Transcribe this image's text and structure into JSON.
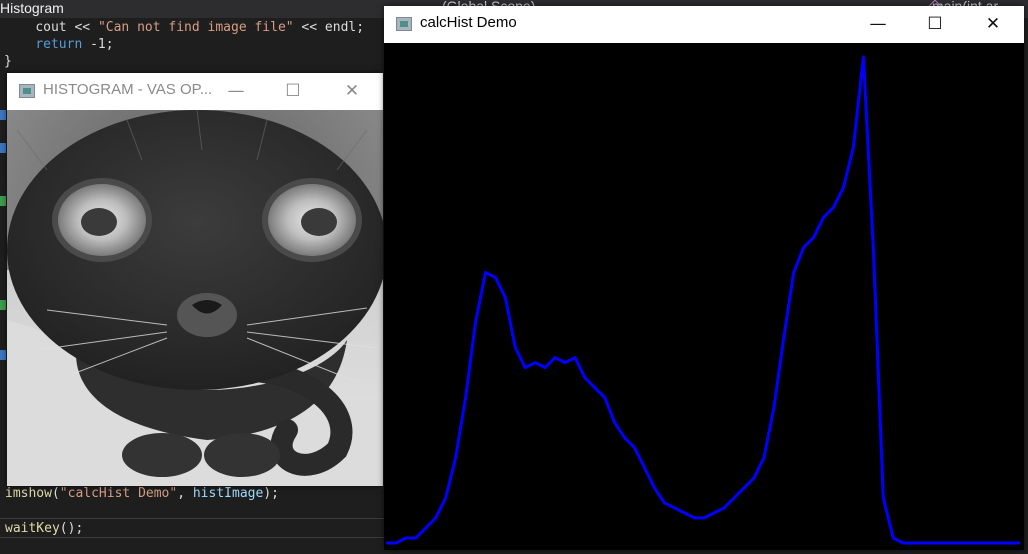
{
  "ide": {
    "title": "Histogram",
    "scope": "(Global Scope)",
    "function": "main(int ar",
    "code_top": [
      {
        "indent": "    ",
        "parts": [
          [
            "id",
            "cout << "
          ],
          [
            "str",
            "\"Can not find image file\""
          ],
          [
            "id",
            " << endl;"
          ]
        ]
      },
      {
        "indent": "    ",
        "parts": [
          [
            "kw",
            "return"
          ],
          [
            "id",
            " -1;"
          ]
        ]
      },
      {
        "indent": "",
        "parts": [
          [
            "id",
            "}"
          ]
        ]
      }
    ],
    "line_imshow": [
      [
        "fn",
        "imshow"
      ],
      [
        "id",
        "("
      ],
      [
        "str",
        "\"calcHist Demo\""
      ],
      [
        "id",
        ", "
      ],
      [
        "hl",
        "histImage"
      ],
      [
        "id",
        ");"
      ]
    ],
    "line_waitkey": [
      [
        "fn",
        "waitKey"
      ],
      [
        "id",
        "();"
      ]
    ]
  },
  "windows": {
    "histogram": {
      "title": "HISTOGRAM - VAS OP...",
      "minimize": "—",
      "maximize": "☐",
      "close": "✕"
    },
    "calchist": {
      "title": "calcHist Demo",
      "minimize": "—",
      "maximize": "☐",
      "close": "✕"
    }
  },
  "colors": {
    "histogram_line": "#0000ff",
    "plot_bg": "#000000",
    "ide_bg": "#1e1e1e"
  },
  "chart_data": {
    "type": "line",
    "title": "",
    "xlabel": "",
    "ylabel": "",
    "xlim": [
      0,
      255
    ],
    "ylim": [
      0,
      1
    ],
    "series": [
      {
        "x": [
          0,
          4,
          8,
          12,
          16,
          20,
          24,
          28,
          32,
          36,
          40,
          44,
          48,
          52,
          56,
          60,
          64,
          68,
          72,
          76,
          80,
          84,
          88,
          92,
          96,
          100,
          104,
          108,
          112,
          116,
          120,
          124,
          128,
          132,
          136,
          140,
          144,
          148,
          152,
          156,
          160,
          164,
          168,
          172,
          176,
          180,
          184,
          188,
          192,
          196,
          200,
          204,
          208,
          212,
          216,
          220,
          224,
          228,
          232,
          236,
          240,
          244,
          246,
          248,
          250,
          252,
          255
        ],
        "values": [
          0.01,
          0.01,
          0.02,
          0.02,
          0.04,
          0.06,
          0.1,
          0.18,
          0.3,
          0.45,
          0.55,
          0.54,
          0.5,
          0.4,
          0.36,
          0.37,
          0.36,
          0.38,
          0.37,
          0.38,
          0.34,
          0.32,
          0.3,
          0.25,
          0.22,
          0.2,
          0.16,
          0.12,
          0.09,
          0.08,
          0.07,
          0.06,
          0.06,
          0.07,
          0.08,
          0.1,
          0.12,
          0.14,
          0.18,
          0.28,
          0.42,
          0.55,
          0.6,
          0.62,
          0.66,
          0.68,
          0.72,
          0.8,
          0.98,
          0.6,
          0.1,
          0.02,
          0.01,
          0.01,
          0.01,
          0.01,
          0.01,
          0.01,
          0.01,
          0.01,
          0.01,
          0.01,
          0.01,
          0.01,
          0.01,
          0.01,
          0.01
        ]
      }
    ]
  }
}
